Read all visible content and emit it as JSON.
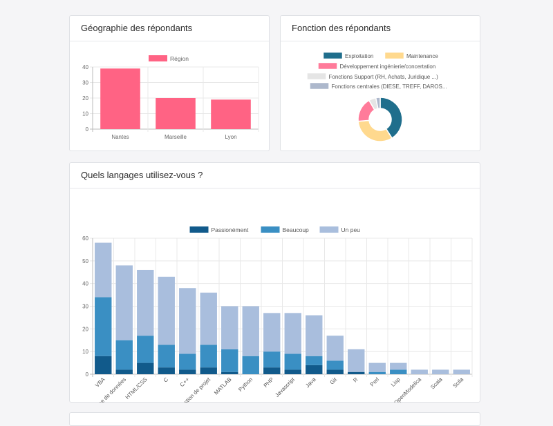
{
  "cards": {
    "geo_title": "Géographie des répondants",
    "fonction_title": "Fonction des répondants",
    "lang_title": "Quels langages utilisez-vous ?"
  },
  "chart_data": [
    {
      "type": "bar",
      "title": "Géographie des répondants",
      "categories": [
        "Nantes",
        "Marseille",
        "Lyon"
      ],
      "series": [
        {
          "name": "Région",
          "values": [
            39,
            20,
            19
          ],
          "color": "#ff6384"
        }
      ],
      "ylim": [
        0,
        40
      ],
      "yticks": [
        0,
        10,
        20,
        30,
        40
      ],
      "grid": true,
      "legend": "top"
    },
    {
      "type": "pie",
      "title": "Fonction des répondants",
      "categories": [
        "Exploitation",
        "Maintenance",
        "Développement ingénierie/concertation",
        "Fonctions Support (RH, Achats, Juridique ...)",
        "Fonctions centrales (DIESE, TREFF, DAROS..."
      ],
      "values": [
        39,
        31,
        17,
        5,
        3
      ],
      "colors": [
        "#1f6e8c",
        "#ffd98e",
        "#ff7b9a",
        "#e5e5e5",
        "#adb8cc"
      ],
      "donut": true,
      "legend": "top"
    },
    {
      "type": "bar",
      "stacked": true,
      "title": "Quels langages utilisez-vous ?",
      "categories": [
        "VBA",
        "Base de données",
        "HTML/CSS",
        "C",
        "C++",
        "Gestion de projet",
        "MATLAB",
        "Python",
        "PHP",
        "Javascript",
        "Java",
        "Git",
        "R",
        "Perl",
        "Lisp",
        "OpenModelica",
        "Scala",
        "Scila"
      ],
      "series": [
        {
          "name": "Passionément",
          "color": "#115a8b",
          "values": [
            8,
            2,
            5,
            3,
            2,
            3,
            1,
            0,
            3,
            2,
            4,
            2,
            1,
            0,
            0,
            0,
            0,
            0
          ]
        },
        {
          "name": "Beaucoup",
          "color": "#3a8fc3",
          "values": [
            26,
            13,
            12,
            10,
            7,
            10,
            10,
            8,
            7,
            7,
            4,
            4,
            0,
            1,
            2,
            0,
            0,
            0
          ]
        },
        {
          "name": "Un peu",
          "color": "#a9bedd",
          "values": [
            24,
            33,
            29,
            30,
            29,
            23,
            19,
            22,
            17,
            18,
            18,
            11,
            10,
            4,
            3,
            2,
            2,
            2
          ]
        }
      ],
      "ylim": [
        0,
        60
      ],
      "yticks": [
        0,
        10,
        20,
        30,
        40,
        50,
        60
      ],
      "grid": true,
      "legend": "top"
    }
  ]
}
